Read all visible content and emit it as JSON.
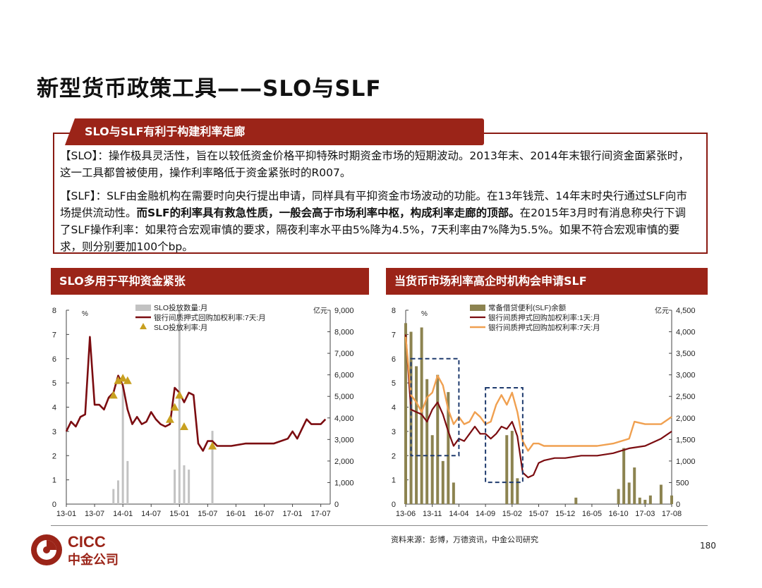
{
  "page": {
    "title": "新型货币政策工具——SLO与SLF",
    "page_number": "180",
    "source": "资料来源：彭博，万德资讯，中金公司研究"
  },
  "box": {
    "tab_label": "SLO与SLF有利于构建利率走廊",
    "slo_para": "【SLO】：操作极具灵活性，旨在以较低资金价格平抑特殊时期资金市场的短期波动。2013年末、2014年末银行间资金面紧张时，这一工具都曾被使用，操作利率略低于资金紧张时的R007。",
    "slf_para_a": "【SLF】：SLF由金融机构在需要时向央行提出申请，同样具有平抑资金市场波动的功能。在13年钱荒、14年末时央行通过SLF向市场提供流动性。",
    "slf_para_bold": "而SLF的利率具有救急性质，一般会高于市场利率中枢，构成利率走廊的顶部。",
    "slf_para_b": "在2015年3月时有消息称央行下调了SLF操作利率：如果符合宏观审慎的要求，隔夜利率水平由5%降为4.5%，7天利率由7%降为5.5%。如果不符合宏观审慎的要求，则分别要加100个bp。"
  },
  "panels": {
    "left_title": "SLO多用于平抑资金紧张",
    "right_title": "当货币市场利率高企时机构会申请SLF"
  },
  "logo": {
    "text_en": "CICC",
    "text_cn": "中金公司"
  },
  "colors": {
    "accent": "#9b2418",
    "line_dark": "#7b0c10",
    "line_orange": "#f0a050",
    "bar_gray": "#c2c2c2",
    "bar_olive": "#8c8350",
    "marker": "#c8a020"
  },
  "chart_data": [
    {
      "type": "line",
      "title": "SLO多用于平抑资金紧张",
      "x_ticks": [
        "13-01",
        "13-07",
        "14-01",
        "14-07",
        "15-01",
        "15-07",
        "16-01",
        "16-07",
        "17-01",
        "17-07"
      ],
      "x_range": [
        "2013-01",
        "2017-09"
      ],
      "y_left": {
        "unit": "%",
        "range": [
          0,
          8
        ],
        "ticks": [
          "0",
          "1",
          "2",
          "3",
          "4",
          "5",
          "6",
          "7",
          "8"
        ]
      },
      "y_right": {
        "unit": "亿元",
        "range": [
          0,
          9000
        ],
        "ticks": [
          "0",
          "1,000",
          "2,000",
          "3,000",
          "4,000",
          "5,000",
          "6,000",
          "7,000",
          "8,000",
          "9,000"
        ]
      },
      "legend_position": "top-center",
      "series": [
        {
          "name": "SLO投放数量:月",
          "kind": "bar",
          "axis": "right",
          "points": [
            [
              "2013-11",
              700
            ],
            [
              "2013-12",
              1100
            ],
            [
              "2014-01",
              5500
            ],
            [
              "2014-02",
              2000
            ],
            [
              "2014-12",
              1600
            ],
            [
              "2015-01",
              9000
            ],
            [
              "2015-02",
              1800
            ],
            [
              "2015-03",
              1600
            ],
            [
              "2015-08",
              3400
            ]
          ]
        },
        {
          "name": "银行间质押式回购加权利率:7天:月",
          "kind": "line",
          "axis": "left",
          "points": [
            [
              "2013-01",
              3.0
            ],
            [
              "2013-02",
              3.4
            ],
            [
              "2013-03",
              3.2
            ],
            [
              "2013-04",
              3.6
            ],
            [
              "2013-05",
              3.7
            ],
            [
              "2013-06",
              6.9
            ],
            [
              "2013-07",
              4.1
            ],
            [
              "2013-08",
              4.1
            ],
            [
              "2013-09",
              3.9
            ],
            [
              "2013-10",
              4.4
            ],
            [
              "2013-11",
              4.6
            ],
            [
              "2013-12",
              5.3
            ],
            [
              "2014-01",
              4.9
            ],
            [
              "2014-02",
              3.9
            ],
            [
              "2014-03",
              3.3
            ],
            [
              "2014-04",
              3.6
            ],
            [
              "2014-05",
              3.3
            ],
            [
              "2014-06",
              3.4
            ],
            [
              "2014-07",
              3.8
            ],
            [
              "2014-08",
              3.5
            ],
            [
              "2014-09",
              3.3
            ],
            [
              "2014-10",
              3.2
            ],
            [
              "2014-11",
              3.3
            ],
            [
              "2014-12",
              4.8
            ],
            [
              "2015-01",
              4.6
            ],
            [
              "2015-02",
              4.2
            ],
            [
              "2015-03",
              4.6
            ],
            [
              "2015-04",
              4.5
            ],
            [
              "2015-05",
              2.5
            ],
            [
              "2015-06",
              2.2
            ],
            [
              "2015-07",
              2.6
            ],
            [
              "2015-08",
              2.6
            ],
            [
              "2015-09",
              2.4
            ],
            [
              "2015-10",
              2.4
            ],
            [
              "2015-11",
              2.4
            ],
            [
              "2015-12",
              2.4
            ],
            [
              "2016-03",
              2.5
            ],
            [
              "2016-06",
              2.5
            ],
            [
              "2016-09",
              2.5
            ],
            [
              "2016-12",
              2.7
            ],
            [
              "2017-01",
              3.0
            ],
            [
              "2017-02",
              2.7
            ],
            [
              "2017-03",
              3.1
            ],
            [
              "2017-04",
              3.5
            ],
            [
              "2017-05",
              3.3
            ],
            [
              "2017-06",
              3.3
            ],
            [
              "2017-07",
              3.3
            ],
            [
              "2017-08",
              3.5
            ]
          ]
        },
        {
          "name": "SLO投放利率:月",
          "kind": "scatter",
          "axis": "left",
          "points": [
            [
              "2013-11",
              4.5
            ],
            [
              "2013-12",
              5.1
            ],
            [
              "2014-01",
              5.2
            ],
            [
              "2014-02",
              5.1
            ],
            [
              "2014-11",
              3.5
            ],
            [
              "2014-12",
              4.0
            ],
            [
              "2015-01",
              4.5
            ],
            [
              "2015-02",
              3.2
            ],
            [
              "2015-08",
              2.4
            ]
          ]
        }
      ]
    },
    {
      "type": "line",
      "title": "当货币市场利率高企时机构会申请SLF",
      "x_ticks": [
        "13-06",
        "13-11",
        "14-04",
        "14-09",
        "15-02",
        "15-07",
        "15-12",
        "16-05",
        "16-10",
        "17-03",
        "17-08"
      ],
      "x_range": [
        "2013-06",
        "2017-08"
      ],
      "y_left": {
        "unit": "%",
        "range": [
          0,
          8
        ],
        "ticks": [
          "0",
          "1",
          "2",
          "3",
          "4",
          "5",
          "6",
          "7",
          "8"
        ]
      },
      "y_right": {
        "unit": "亿元",
        "range": [
          0,
          4500
        ],
        "ticks": [
          "0",
          "500",
          "1,000",
          "1,500",
          "2,000",
          "2,500",
          "3,000",
          "3,500",
          "4,000",
          "4,500"
        ]
      },
      "legend_position": "top-center",
      "series": [
        {
          "name": "常备借贷便利(SLF)余额",
          "kind": "bar",
          "axis": "right",
          "points": [
            [
              "2013-06",
              4200
            ],
            [
              "2013-07",
              4000
            ],
            [
              "2013-08",
              3200
            ],
            [
              "2013-09",
              4100
            ],
            [
              "2013-10",
              2900
            ],
            [
              "2013-11",
              1600
            ],
            [
              "2013-12",
              3000
            ],
            [
              "2014-01",
              1000
            ],
            [
              "2014-02",
              2600
            ],
            [
              "2014-03",
              500
            ],
            [
              "2015-01",
              1600
            ],
            [
              "2015-02",
              1700
            ],
            [
              "2015-03",
              600
            ],
            [
              "2016-02",
              150
            ],
            [
              "2016-10",
              350
            ],
            [
              "2016-11",
              1300
            ],
            [
              "2016-12",
              500
            ],
            [
              "2017-01",
              850
            ],
            [
              "2017-02",
              150
            ],
            [
              "2017-03",
              100
            ],
            [
              "2017-04",
              200
            ],
            [
              "2017-06",
              450
            ],
            [
              "2017-08",
              200
            ]
          ]
        },
        {
          "name": "银行间质押式回购加权利率:1天:月",
          "kind": "line",
          "axis": "left",
          "points": [
            [
              "2013-06",
              7.0
            ],
            [
              "2013-07",
              3.9
            ],
            [
              "2013-08",
              3.8
            ],
            [
              "2013-09",
              3.7
            ],
            [
              "2013-10",
              3.4
            ],
            [
              "2013-11",
              3.9
            ],
            [
              "2013-12",
              4.2
            ],
            [
              "2014-01",
              3.7
            ],
            [
              "2014-02",
              3.0
            ],
            [
              "2014-03",
              2.4
            ],
            [
              "2014-04",
              2.7
            ],
            [
              "2014-05",
              2.6
            ],
            [
              "2014-06",
              2.9
            ],
            [
              "2014-07",
              3.2
            ],
            [
              "2014-08",
              2.9
            ],
            [
              "2014-09",
              2.9
            ],
            [
              "2014-10",
              2.7
            ],
            [
              "2014-11",
              2.9
            ],
            [
              "2014-12",
              3.2
            ],
            [
              "2015-01",
              3.1
            ],
            [
              "2015-02",
              3.4
            ],
            [
              "2015-03",
              2.8
            ],
            [
              "2015-04",
              1.3
            ],
            [
              "2015-05",
              1.1
            ],
            [
              "2015-06",
              1.2
            ],
            [
              "2015-07",
              1.7
            ],
            [
              "2015-08",
              1.8
            ],
            [
              "2015-10",
              1.9
            ],
            [
              "2015-12",
              1.9
            ],
            [
              "2016-03",
              2.0
            ],
            [
              "2016-06",
              2.0
            ],
            [
              "2016-09",
              2.1
            ],
            [
              "2016-12",
              2.3
            ],
            [
              "2017-03",
              2.4
            ],
            [
              "2017-06",
              2.7
            ],
            [
              "2017-08",
              3.0
            ]
          ]
        },
        {
          "name": "银行间质押式回购加权利率:7天:月",
          "kind": "line",
          "axis": "left",
          "points": [
            [
              "2013-06",
              6.9
            ],
            [
              "2013-07",
              4.5
            ],
            [
              "2013-08",
              4.2
            ],
            [
              "2013-09",
              3.8
            ],
            [
              "2013-10",
              4.4
            ],
            [
              "2013-11",
              4.6
            ],
            [
              "2013-12",
              5.3
            ],
            [
              "2014-01",
              4.9
            ],
            [
              "2014-02",
              3.9
            ],
            [
              "2014-03",
              3.3
            ],
            [
              "2014-04",
              3.6
            ],
            [
              "2014-05",
              3.3
            ],
            [
              "2014-06",
              3.4
            ],
            [
              "2014-07",
              3.8
            ],
            [
              "2014-08",
              3.6
            ],
            [
              "2014-09",
              3.3
            ],
            [
              "2014-10",
              3.4
            ],
            [
              "2014-11",
              4.1
            ],
            [
              "2014-12",
              4.5
            ],
            [
              "2015-01",
              4.1
            ],
            [
              "2015-02",
              4.6
            ],
            [
              "2015-03",
              3.8
            ],
            [
              "2015-04",
              2.6
            ],
            [
              "2015-05",
              2.2
            ],
            [
              "2015-06",
              2.5
            ],
            [
              "2015-07",
              2.5
            ],
            [
              "2015-08",
              2.4
            ],
            [
              "2015-10",
              2.4
            ],
            [
              "2015-12",
              2.4
            ],
            [
              "2016-03",
              2.4
            ],
            [
              "2016-06",
              2.4
            ],
            [
              "2016-09",
              2.5
            ],
            [
              "2016-12",
              2.7
            ],
            [
              "2017-01",
              3.4
            ],
            [
              "2017-03",
              3.3
            ],
            [
              "2017-06",
              3.3
            ],
            [
              "2017-08",
              3.6
            ]
          ]
        }
      ]
    }
  ]
}
